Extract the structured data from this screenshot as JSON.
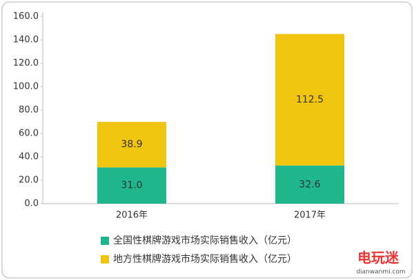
{
  "chart_data": {
    "type": "stacked-bar",
    "categories": [
      "2016年",
      "2017年"
    ],
    "series": [
      {
        "name": "全国性棋牌游戏市场实际销售收入（亿元）",
        "color": "#1fb68e",
        "values": [
          31.0,
          32.6
        ],
        "value_labels": [
          "31.0",
          "32.6"
        ]
      },
      {
        "name": "地方性棋牌游戏市场实际销售收入（亿元）",
        "color": "#f1c40f",
        "values": [
          38.9,
          112.5
        ],
        "value_labels": [
          "38.9",
          "112.5"
        ]
      }
    ],
    "ylim": [
      0,
      160
    ],
    "yticks": [
      {
        "value": 0,
        "label": "0.0"
      },
      {
        "value": 20,
        "label": "20.0"
      },
      {
        "value": 40,
        "label": "40.0"
      },
      {
        "value": 60,
        "label": "60.0"
      },
      {
        "value": 80,
        "label": "80.0"
      },
      {
        "value": 100,
        "label": "100.0"
      },
      {
        "value": 120,
        "label": "120.0"
      },
      {
        "value": 140,
        "label": "140.0"
      },
      {
        "value": 160,
        "label": "160.0"
      }
    ],
    "grid": false,
    "legend": "bottom"
  },
  "watermark": {
    "logo": "电玩迷",
    "site": "dianwanmi.com"
  }
}
